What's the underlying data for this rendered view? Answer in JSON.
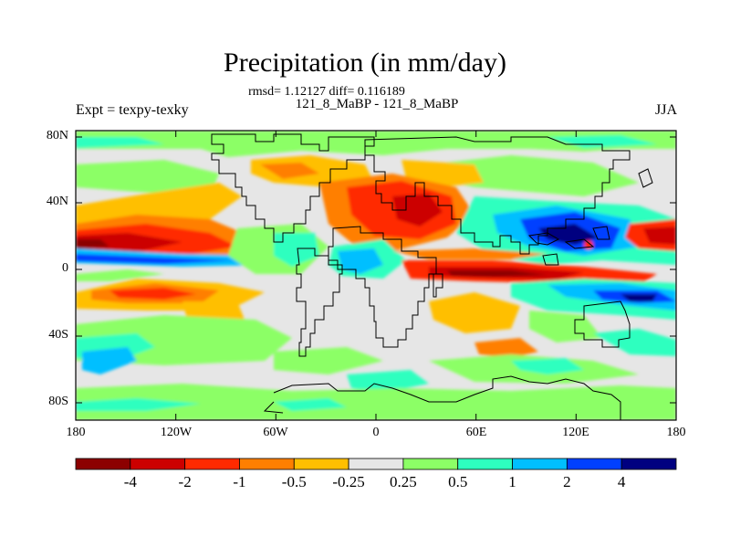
{
  "title": "Precipitation (in mm/day)",
  "stats": "rmsd= 1.12127 diff= 0.116189",
  "cases": "121_8_MaBP - 121_8_MaBP",
  "expt": "Expt = texpy-texky",
  "season": "JJA",
  "y_ticks": [
    "80N",
    "40N",
    "0",
    "40S",
    "80S"
  ],
  "x_ticks": [
    "180",
    "120W",
    "60W",
    "0",
    "60E",
    "120E",
    "180"
  ],
  "colorbar": {
    "colors": [
      "#8c0000",
      "#cc0000",
      "#ff2a00",
      "#ff7f00",
      "#ffbf00",
      "#e6e6e6",
      "#8cff66",
      "#2effbf",
      "#00bfff",
      "#0040ff",
      "#000080"
    ],
    "labels": [
      "-4",
      "-2",
      "-1",
      "-0.5",
      "-0.25",
      "0.25",
      "0.5",
      "1",
      "2",
      "4"
    ]
  }
}
